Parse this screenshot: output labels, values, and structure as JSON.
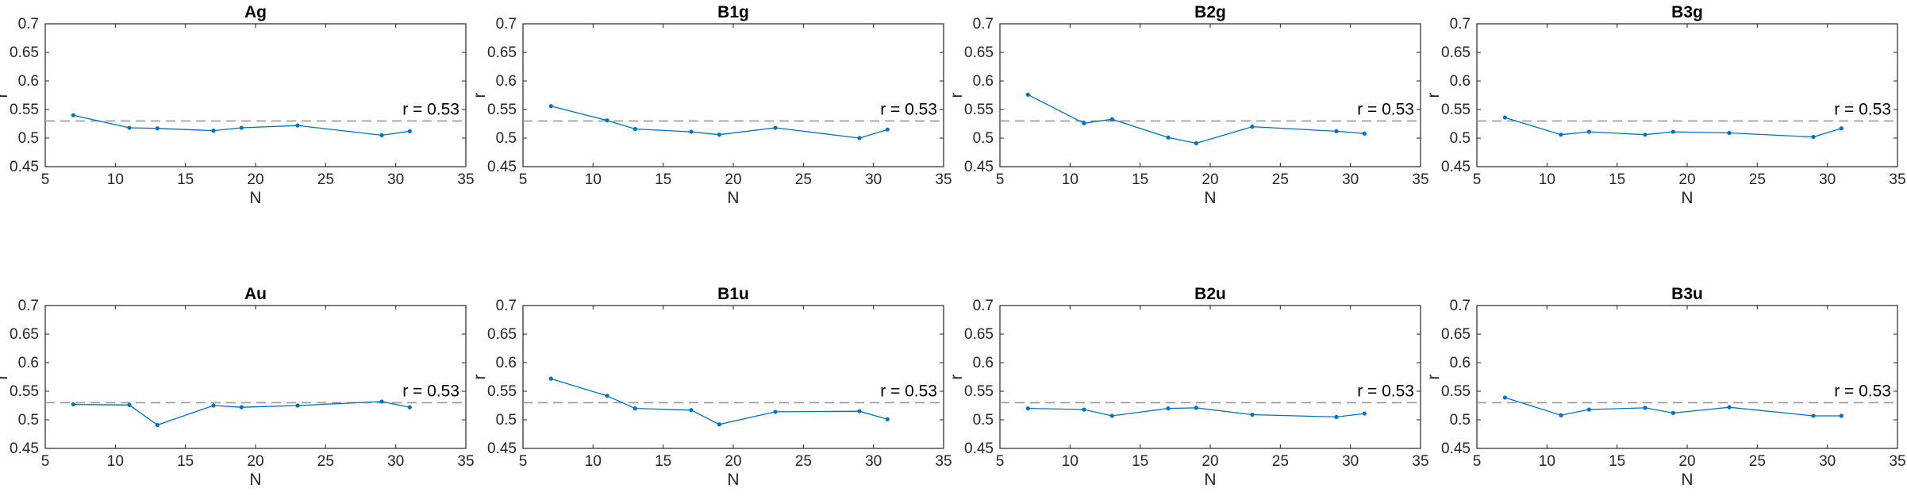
{
  "colors": {
    "series": "#0072bd",
    "reference": "#999999",
    "axis": "#262626"
  },
  "chart_data": [
    {
      "type": "line",
      "title": "Ag",
      "xlabel": "N",
      "ylabel": "r",
      "xlim": [
        5,
        35
      ],
      "ylim": [
        0.45,
        0.7
      ],
      "xticks": [
        "5",
        "10",
        "15",
        "20",
        "25",
        "30",
        "35"
      ],
      "yticks": [
        "0.45",
        "0.5",
        "0.55",
        "0.6",
        "0.65",
        "0.7"
      ],
      "grid": false,
      "reference_y": 0.53,
      "annotation": "r = 0.53",
      "x": [
        7,
        11,
        13,
        17,
        19,
        23,
        29,
        31
      ],
      "y": [
        0.54,
        0.518,
        0.517,
        0.513,
        0.518,
        0.522,
        0.505,
        0.512
      ]
    },
    {
      "type": "line",
      "title": "B1g",
      "xlabel": "N",
      "ylabel": "r",
      "xlim": [
        5,
        35
      ],
      "ylim": [
        0.45,
        0.7
      ],
      "xticks": [
        "5",
        "10",
        "15",
        "20",
        "25",
        "30",
        "35"
      ],
      "yticks": [
        "0.45",
        "0.5",
        "0.55",
        "0.6",
        "0.65",
        "0.7"
      ],
      "grid": false,
      "reference_y": 0.53,
      "annotation": "r = 0.53",
      "x": [
        7,
        11,
        13,
        17,
        19,
        23,
        29,
        31
      ],
      "y": [
        0.556,
        0.531,
        0.516,
        0.511,
        0.506,
        0.518,
        0.5,
        0.515
      ]
    },
    {
      "type": "line",
      "title": "B2g",
      "xlabel": "N",
      "ylabel": "r",
      "xlim": [
        5,
        35
      ],
      "ylim": [
        0.45,
        0.7
      ],
      "xticks": [
        "5",
        "10",
        "15",
        "20",
        "25",
        "30",
        "35"
      ],
      "yticks": [
        "0.45",
        "0.5",
        "0.55",
        "0.6",
        "0.65",
        "0.7"
      ],
      "grid": false,
      "reference_y": 0.53,
      "annotation": "r = 0.53",
      "x": [
        7,
        11,
        13,
        17,
        19,
        23,
        29,
        31
      ],
      "y": [
        0.576,
        0.526,
        0.533,
        0.501,
        0.491,
        0.52,
        0.512,
        0.508
      ]
    },
    {
      "type": "line",
      "title": "B3g",
      "xlabel": "N",
      "ylabel": "r",
      "xlim": [
        5,
        35
      ],
      "ylim": [
        0.45,
        0.7
      ],
      "xticks": [
        "5",
        "10",
        "15",
        "20",
        "25",
        "30",
        "35"
      ],
      "yticks": [
        "0.45",
        "0.5",
        "0.55",
        "0.6",
        "0.65",
        "0.7"
      ],
      "grid": false,
      "reference_y": 0.53,
      "annotation": "r = 0.53",
      "x": [
        7,
        11,
        13,
        17,
        19,
        23,
        29,
        31
      ],
      "y": [
        0.536,
        0.506,
        0.511,
        0.506,
        0.511,
        0.509,
        0.502,
        0.517
      ]
    },
    {
      "type": "line",
      "title": "Au",
      "xlabel": "N",
      "ylabel": "r",
      "xlim": [
        5,
        35
      ],
      "ylim": [
        0.45,
        0.7
      ],
      "xticks": [
        "5",
        "10",
        "15",
        "20",
        "25",
        "30",
        "35"
      ],
      "yticks": [
        "0.45",
        "0.5",
        "0.55",
        "0.6",
        "0.65",
        "0.7"
      ],
      "grid": false,
      "reference_y": 0.53,
      "annotation": "r = 0.53",
      "x": [
        7,
        11,
        13,
        17,
        19,
        23,
        29,
        31
      ],
      "y": [
        0.527,
        0.526,
        0.491,
        0.525,
        0.522,
        0.525,
        0.532,
        0.522
      ]
    },
    {
      "type": "line",
      "title": "B1u",
      "xlabel": "N",
      "ylabel": "r",
      "xlim": [
        5,
        35
      ],
      "ylim": [
        0.45,
        0.7
      ],
      "xticks": [
        "5",
        "10",
        "15",
        "20",
        "25",
        "30",
        "35"
      ],
      "yticks": [
        "0.45",
        "0.5",
        "0.55",
        "0.6",
        "0.65",
        "0.7"
      ],
      "grid": false,
      "reference_y": 0.53,
      "annotation": "r = 0.53",
      "x": [
        7,
        11,
        13,
        17,
        19,
        23,
        29,
        31
      ],
      "y": [
        0.572,
        0.542,
        0.52,
        0.517,
        0.492,
        0.514,
        0.515,
        0.501
      ]
    },
    {
      "type": "line",
      "title": "B2u",
      "xlabel": "N",
      "ylabel": "r",
      "xlim": [
        5,
        35
      ],
      "ylim": [
        0.45,
        0.7
      ],
      "xticks": [
        "5",
        "10",
        "15",
        "20",
        "25",
        "30",
        "35"
      ],
      "yticks": [
        "0.45",
        "0.5",
        "0.55",
        "0.6",
        "0.65",
        "0.7"
      ],
      "grid": false,
      "reference_y": 0.53,
      "annotation": "r = 0.53",
      "x": [
        7,
        11,
        13,
        17,
        19,
        23,
        29,
        31
      ],
      "y": [
        0.52,
        0.518,
        0.507,
        0.52,
        0.521,
        0.509,
        0.505,
        0.511
      ]
    },
    {
      "type": "line",
      "title": "B3u",
      "xlabel": "N",
      "ylabel": "r",
      "xlim": [
        5,
        35
      ],
      "ylim": [
        0.45,
        0.7
      ],
      "xticks": [
        "5",
        "10",
        "15",
        "20",
        "25",
        "30",
        "35"
      ],
      "yticks": [
        "0.45",
        "0.5",
        "0.55",
        "0.6",
        "0.65",
        "0.7"
      ],
      "grid": false,
      "reference_y": 0.53,
      "annotation": "r = 0.53",
      "x": [
        7,
        11,
        13,
        17,
        19,
        23,
        29,
        31
      ],
      "y": [
        0.539,
        0.508,
        0.518,
        0.521,
        0.512,
        0.522,
        0.507,
        0.507
      ]
    }
  ]
}
